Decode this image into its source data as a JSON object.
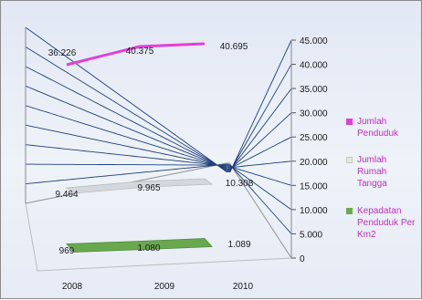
{
  "chart_data": {
    "type": "line",
    "categories": [
      "2008",
      "2009",
      "2010"
    ],
    "ylim": [
      0,
      45000
    ],
    "y_ticks": [
      "0",
      "5.000",
      "10.000",
      "15.000",
      "20.000",
      "25.000",
      "30.000",
      "35.000",
      "40.000",
      "45.000"
    ],
    "grid": true,
    "legend": "right",
    "series": [
      {
        "name": "Jumlah Penduduk",
        "values": [
          36226,
          40375,
          40695
        ],
        "labels": [
          "36.226",
          "40.375",
          "40.695"
        ],
        "color": "#e040d8"
      },
      {
        "name": "Jumlah Rumah Tangga",
        "values": [
          9464,
          9965,
          10308
        ],
        "labels": [
          "9.464",
          "9.965",
          "10.308"
        ],
        "color": "#d4d8dc"
      },
      {
        "name": "Kepadatan Penduduk Per Km2",
        "values": [
          969,
          1080,
          1089
        ],
        "labels": [
          "969",
          "1.080",
          "1.089"
        ],
        "color": "#6aa84f"
      }
    ]
  }
}
